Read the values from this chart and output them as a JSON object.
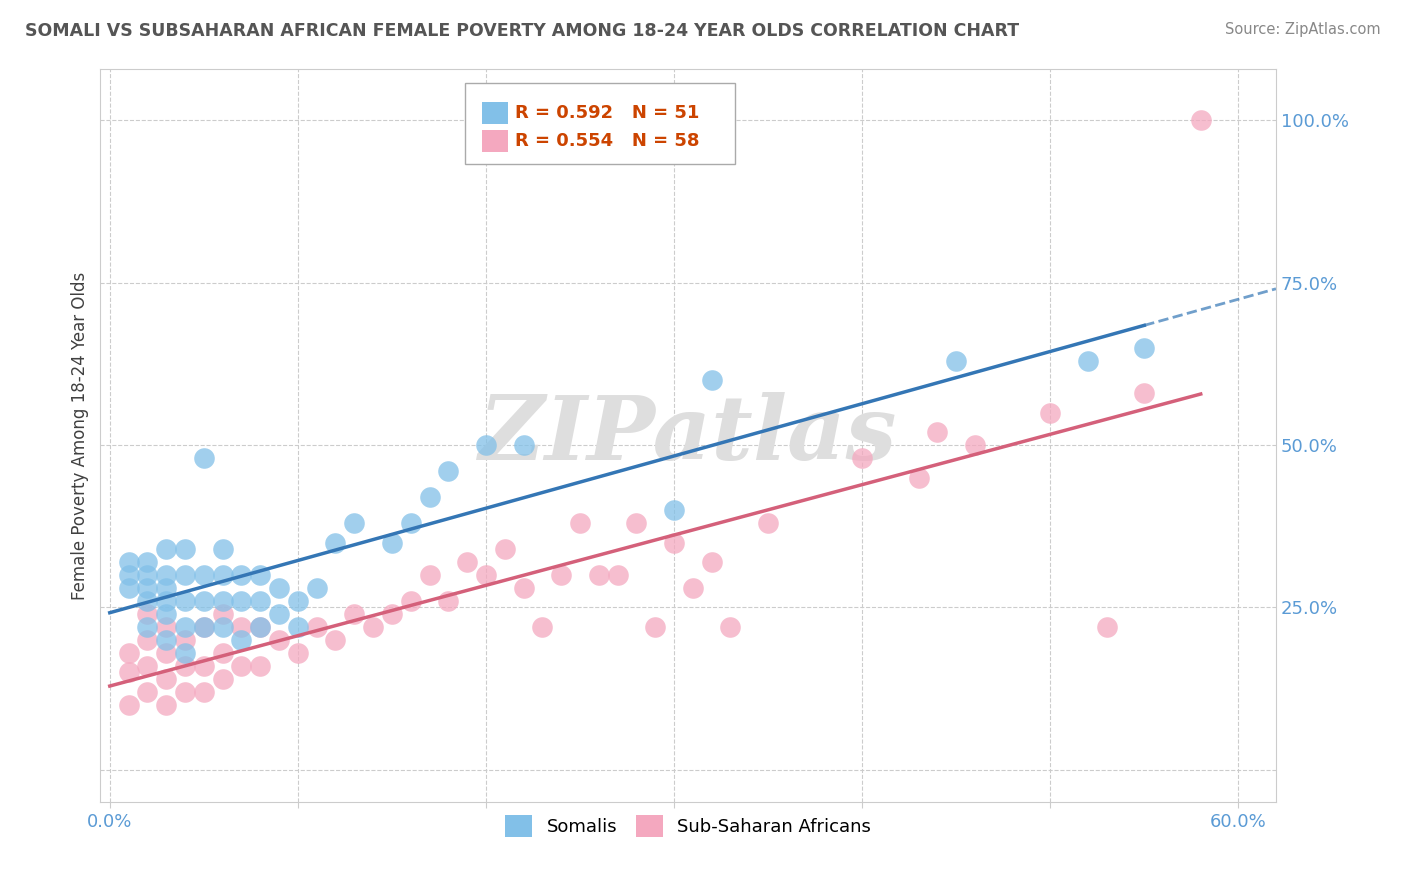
{
  "title": "SOMALI VS SUBSAHARAN AFRICAN FEMALE POVERTY AMONG 18-24 YEAR OLDS CORRELATION CHART",
  "source": "Source: ZipAtlas.com",
  "ylabel": "Female Poverty Among 18-24 Year Olds",
  "xlim": [
    -0.005,
    0.62
  ],
  "ylim": [
    -0.05,
    1.08
  ],
  "xticks": [
    0.0,
    0.1,
    0.2,
    0.3,
    0.4,
    0.5,
    0.6
  ],
  "xticklabels": [
    "0.0%",
    "",
    "",
    "",
    "",
    "",
    "60.0%"
  ],
  "yticks": [
    0.0,
    0.25,
    0.5,
    0.75,
    1.0
  ],
  "yticklabels": [
    "",
    "25.0%",
    "50.0%",
    "75.0%",
    "100.0%"
  ],
  "legend1_R": "0.592",
  "legend1_N": "51",
  "legend2_R": "0.554",
  "legend2_N": "58",
  "somali_color": "#82C0E8",
  "subsaharan_color": "#F4A8BF",
  "somali_line_color": "#3476B5",
  "subsaharan_line_color": "#D4607A",
  "watermark": "ZIPatlas",
  "background_color": "#FFFFFF",
  "somali_x": [
    0.01,
    0.01,
    0.01,
    0.02,
    0.02,
    0.02,
    0.02,
    0.02,
    0.03,
    0.03,
    0.03,
    0.03,
    0.03,
    0.03,
    0.04,
    0.04,
    0.04,
    0.04,
    0.04,
    0.05,
    0.05,
    0.05,
    0.05,
    0.06,
    0.06,
    0.06,
    0.06,
    0.07,
    0.07,
    0.07,
    0.08,
    0.08,
    0.08,
    0.09,
    0.09,
    0.1,
    0.1,
    0.11,
    0.12,
    0.13,
    0.15,
    0.16,
    0.17,
    0.18,
    0.2,
    0.22,
    0.3,
    0.32,
    0.45,
    0.52,
    0.55
  ],
  "somali_y": [
    0.28,
    0.3,
    0.32,
    0.22,
    0.26,
    0.28,
    0.3,
    0.32,
    0.2,
    0.24,
    0.26,
    0.28,
    0.3,
    0.34,
    0.18,
    0.22,
    0.26,
    0.3,
    0.34,
    0.22,
    0.26,
    0.3,
    0.48,
    0.22,
    0.26,
    0.3,
    0.34,
    0.2,
    0.26,
    0.3,
    0.22,
    0.26,
    0.3,
    0.24,
    0.28,
    0.22,
    0.26,
    0.28,
    0.35,
    0.38,
    0.35,
    0.38,
    0.42,
    0.46,
    0.5,
    0.5,
    0.4,
    0.6,
    0.63,
    0.63,
    0.65
  ],
  "subsaharan_x": [
    0.01,
    0.01,
    0.01,
    0.02,
    0.02,
    0.02,
    0.02,
    0.03,
    0.03,
    0.03,
    0.03,
    0.04,
    0.04,
    0.04,
    0.05,
    0.05,
    0.05,
    0.06,
    0.06,
    0.06,
    0.07,
    0.07,
    0.08,
    0.08,
    0.09,
    0.1,
    0.11,
    0.12,
    0.13,
    0.14,
    0.15,
    0.16,
    0.17,
    0.18,
    0.19,
    0.2,
    0.21,
    0.22,
    0.23,
    0.24,
    0.25,
    0.26,
    0.27,
    0.28,
    0.29,
    0.3,
    0.31,
    0.32,
    0.33,
    0.35,
    0.4,
    0.43,
    0.44,
    0.46,
    0.5,
    0.53,
    0.55,
    0.58
  ],
  "subsaharan_y": [
    0.1,
    0.15,
    0.18,
    0.12,
    0.16,
    0.2,
    0.24,
    0.1,
    0.14,
    0.18,
    0.22,
    0.12,
    0.16,
    0.2,
    0.12,
    0.16,
    0.22,
    0.14,
    0.18,
    0.24,
    0.16,
    0.22,
    0.16,
    0.22,
    0.2,
    0.18,
    0.22,
    0.2,
    0.24,
    0.22,
    0.24,
    0.26,
    0.3,
    0.26,
    0.32,
    0.3,
    0.34,
    0.28,
    0.22,
    0.3,
    0.38,
    0.3,
    0.3,
    0.38,
    0.22,
    0.35,
    0.28,
    0.32,
    0.22,
    0.38,
    0.48,
    0.45,
    0.52,
    0.5,
    0.55,
    0.22,
    0.58,
    1.0
  ]
}
